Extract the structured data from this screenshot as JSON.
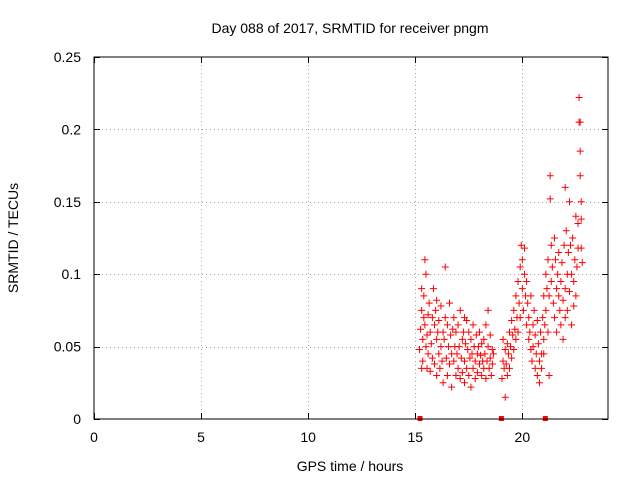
{
  "chart_data": {
    "type": "scatter",
    "title": "Day 088 of 2017, SRMTID for receiver pngm",
    "xlabel": "GPS time / hours",
    "ylabel": "SRMTID / TECUs",
    "xlim": [
      0,
      24
    ],
    "ylim": [
      0,
      0.25
    ],
    "xticks": [
      0,
      5,
      10,
      15,
      20
    ],
    "yticks": [
      0,
      0.05,
      0.1,
      0.15,
      0.2,
      0.25
    ],
    "xtick_labels": [
      "0",
      "5",
      "10",
      "15",
      "20"
    ],
    "ytick_labels": [
      "0",
      "0.05",
      "0.1",
      "0.15",
      "0.2",
      "0.25"
    ],
    "grid": true,
    "marker": "+",
    "series_color": "#ff0000",
    "gap_markers_x": [
      15.2,
      19.0,
      21.05
    ],
    "series": [
      {
        "name": "SRMTID",
        "points": [
          [
            15.2,
            0.048
          ],
          [
            15.25,
            0.062
          ],
          [
            15.3,
            0.075
          ],
          [
            15.3,
            0.09
          ],
          [
            15.35,
            0.055
          ],
          [
            15.35,
            0.04
          ],
          [
            15.4,
            0.07
          ],
          [
            15.4,
            0.085
          ],
          [
            15.45,
            0.11
          ],
          [
            15.45,
            0.065
          ],
          [
            15.5,
            0.05
          ],
          [
            15.5,
            0.1
          ],
          [
            15.55,
            0.058
          ],
          [
            15.55,
            0.035
          ],
          [
            15.6,
            0.072
          ],
          [
            15.6,
            0.045
          ],
          [
            15.65,
            0.08
          ],
          [
            15.7,
            0.06
          ],
          [
            15.7,
            0.033
          ],
          [
            15.75,
            0.052
          ],
          [
            15.8,
            0.07
          ],
          [
            15.8,
            0.042
          ],
          [
            15.85,
            0.09
          ],
          [
            15.9,
            0.065
          ],
          [
            15.9,
            0.038
          ],
          [
            15.95,
            0.075
          ],
          [
            16.0,
            0.055
          ],
          [
            16.0,
            0.03
          ],
          [
            16.05,
            0.06
          ],
          [
            16.1,
            0.045
          ],
          [
            16.1,
            0.068
          ],
          [
            16.15,
            0.035
          ],
          [
            16.2,
            0.05
          ],
          [
            16.2,
            0.078
          ],
          [
            16.25,
            0.04
          ],
          [
            16.3,
            0.06
          ],
          [
            16.3,
            0.025
          ],
          [
            16.35,
            0.055
          ],
          [
            16.4,
            0.105
          ],
          [
            16.4,
            0.07
          ],
          [
            16.45,
            0.042
          ],
          [
            16.5,
            0.065
          ],
          [
            16.5,
            0.03
          ],
          [
            16.55,
            0.05
          ],
          [
            16.6,
            0.08
          ],
          [
            16.6,
            0.038
          ],
          [
            16.65,
            0.058
          ],
          [
            16.7,
            0.045
          ],
          [
            16.7,
            0.022
          ],
          [
            16.75,
            0.062
          ],
          [
            16.8,
            0.04
          ],
          [
            16.8,
            0.07
          ],
          [
            16.85,
            0.05
          ],
          [
            16.9,
            0.03
          ],
          [
            16.9,
            0.06
          ],
          [
            16.95,
            0.045
          ],
          [
            17.0,
            0.035
          ],
          [
            17.0,
            0.065
          ],
          [
            17.05,
            0.05
          ],
          [
            17.1,
            0.028
          ],
          [
            17.1,
            0.075
          ],
          [
            17.15,
            0.042
          ],
          [
            17.2,
            0.055
          ],
          [
            17.2,
            0.032
          ],
          [
            17.25,
            0.06
          ],
          [
            17.3,
            0.04
          ],
          [
            17.3,
            0.025
          ],
          [
            17.35,
            0.052
          ],
          [
            17.4,
            0.068
          ],
          [
            17.4,
            0.035
          ],
          [
            17.45,
            0.048
          ],
          [
            17.5,
            0.03
          ],
          [
            17.5,
            0.06
          ],
          [
            17.55,
            0.042
          ],
          [
            17.6,
            0.055
          ],
          [
            17.6,
            0.022
          ],
          [
            17.65,
            0.045
          ],
          [
            17.7,
            0.065
          ],
          [
            17.7,
            0.035
          ],
          [
            17.75,
            0.05
          ],
          [
            17.8,
            0.04
          ],
          [
            17.8,
            0.028
          ],
          [
            17.85,
            0.058
          ],
          [
            17.9,
            0.045
          ],
          [
            17.9,
            0.032
          ],
          [
            17.95,
            0.05
          ],
          [
            18.0,
            0.038
          ],
          [
            18.0,
            0.06
          ],
          [
            18.05,
            0.044
          ],
          [
            18.1,
            0.03
          ],
          [
            18.1,
            0.052
          ],
          [
            18.15,
            0.04
          ],
          [
            18.2,
            0.035
          ],
          [
            18.2,
            0.055
          ],
          [
            18.25,
            0.045
          ],
          [
            18.3,
            0.028
          ],
          [
            18.3,
            0.065
          ],
          [
            18.35,
            0.04
          ],
          [
            18.4,
            0.05
          ],
          [
            18.4,
            0.075
          ],
          [
            18.45,
            0.035
          ],
          [
            18.5,
            0.042
          ],
          [
            18.5,
            0.058
          ],
          [
            18.55,
            0.03
          ],
          [
            18.6,
            0.048
          ],
          [
            18.6,
            0.038
          ],
          [
            18.65,
            0.045
          ],
          [
            15.3,
            0.035
          ],
          [
            16.0,
            0.082
          ],
          [
            17.3,
            0.07
          ],
          [
            19.05,
            0.028
          ],
          [
            19.1,
            0.04
          ],
          [
            19.1,
            0.055
          ],
          [
            19.15,
            0.035
          ],
          [
            19.2,
            0.048
          ],
          [
            19.2,
            0.015
          ],
          [
            19.25,
            0.038
          ],
          [
            19.3,
            0.052
          ],
          [
            19.3,
            0.03
          ],
          [
            19.35,
            0.045
          ],
          [
            19.4,
            0.06
          ],
          [
            19.4,
            0.035
          ],
          [
            19.45,
            0.05
          ],
          [
            19.5,
            0.068
          ],
          [
            19.5,
            0.042
          ],
          [
            19.55,
            0.058
          ],
          [
            19.6,
            0.075
          ],
          [
            19.6,
            0.048
          ],
          [
            19.65,
            0.062
          ],
          [
            19.7,
            0.085
          ],
          [
            19.7,
            0.055
          ],
          [
            19.75,
            0.07
          ],
          [
            19.8,
            0.095
          ],
          [
            19.8,
            0.06
          ],
          [
            19.85,
            0.08
          ],
          [
            19.9,
            0.105
          ],
          [
            19.9,
            0.07
          ],
          [
            19.95,
            0.12
          ],
          [
            20.0,
            0.09
          ],
          [
            20.0,
            0.11
          ],
          [
            20.05,
            0.075
          ],
          [
            20.1,
            0.1
          ],
          [
            20.1,
            0.118
          ],
          [
            20.15,
            0.085
          ],
          [
            20.2,
            0.065
          ],
          [
            20.2,
            0.095
          ],
          [
            20.25,
            0.08
          ],
          [
            20.3,
            0.055
          ],
          [
            20.3,
            0.07
          ],
          [
            20.35,
            0.06
          ],
          [
            20.4,
            0.048
          ],
          [
            20.4,
            0.085
          ],
          [
            20.45,
            0.04
          ],
          [
            20.5,
            0.065
          ],
          [
            20.5,
            0.05
          ],
          [
            20.55,
            0.075
          ],
          [
            20.6,
            0.035
          ],
          [
            20.6,
            0.058
          ],
          [
            20.65,
            0.045
          ],
          [
            20.7,
            0.03
          ],
          [
            20.7,
            0.068
          ],
          [
            20.75,
            0.052
          ],
          [
            20.8,
            0.04
          ],
          [
            20.8,
            0.025
          ],
          [
            20.85,
            0.06
          ],
          [
            20.9,
            0.045
          ],
          [
            20.95,
            0.07
          ],
          [
            21.0,
            0.055
          ],
          [
            21.0,
            0.085
          ],
          [
            21.05,
            0.065
          ],
          [
            21.1,
            0.1
          ],
          [
            21.1,
            0.075
          ],
          [
            21.15,
            0.09
          ],
          [
            21.2,
            0.11
          ],
          [
            21.2,
            0.06
          ],
          [
            21.25,
            0.085
          ],
          [
            21.3,
            0.168
          ],
          [
            21.3,
            0.152
          ],
          [
            21.35,
            0.12
          ],
          [
            21.35,
            0.095
          ],
          [
            21.4,
            0.105
          ],
          [
            21.45,
            0.08
          ],
          [
            21.5,
            0.125
          ],
          [
            21.5,
            0.07
          ],
          [
            21.55,
            0.11
          ],
          [
            21.6,
            0.09
          ],
          [
            21.6,
            0.06
          ],
          [
            21.65,
            0.1
          ],
          [
            21.7,
            0.085
          ],
          [
            21.7,
            0.115
          ],
          [
            21.75,
            0.075
          ],
          [
            21.8,
            0.095
          ],
          [
            21.8,
            0.065
          ],
          [
            21.85,
            0.108
          ],
          [
            21.9,
            0.082
          ],
          [
            21.9,
            0.055
          ],
          [
            21.95,
            0.12
          ],
          [
            22.0,
            0.09
          ],
          [
            22.0,
            0.07
          ],
          [
            22.05,
            0.13
          ],
          [
            22.1,
            0.1
          ],
          [
            22.1,
            0.075
          ],
          [
            22.15,
            0.115
          ],
          [
            22.2,
            0.15
          ],
          [
            22.2,
            0.088
          ],
          [
            22.25,
            0.12
          ],
          [
            22.3,
            0.1
          ],
          [
            22.3,
            0.065
          ],
          [
            22.35,
            0.125
          ],
          [
            22.4,
            0.095
          ],
          [
            22.4,
            0.078
          ],
          [
            22.45,
            0.11
          ],
          [
            22.5,
            0.14
          ],
          [
            22.5,
            0.085
          ],
          [
            22.55,
            0.105
          ],
          [
            22.6,
            0.118
          ],
          [
            22.6,
            0.135
          ],
          [
            22.65,
            0.205
          ],
          [
            22.65,
            0.222
          ],
          [
            22.7,
            0.205
          ],
          [
            22.7,
            0.185
          ],
          [
            22.7,
            0.168
          ],
          [
            22.75,
            0.15
          ],
          [
            22.75,
            0.138
          ],
          [
            22.75,
            0.118
          ],
          [
            22.8,
            0.108
          ],
          [
            21.25,
            0.03
          ],
          [
            21.0,
            0.045
          ],
          [
            20.9,
            0.035
          ],
          [
            22.0,
            0.16
          ]
        ]
      }
    ]
  }
}
